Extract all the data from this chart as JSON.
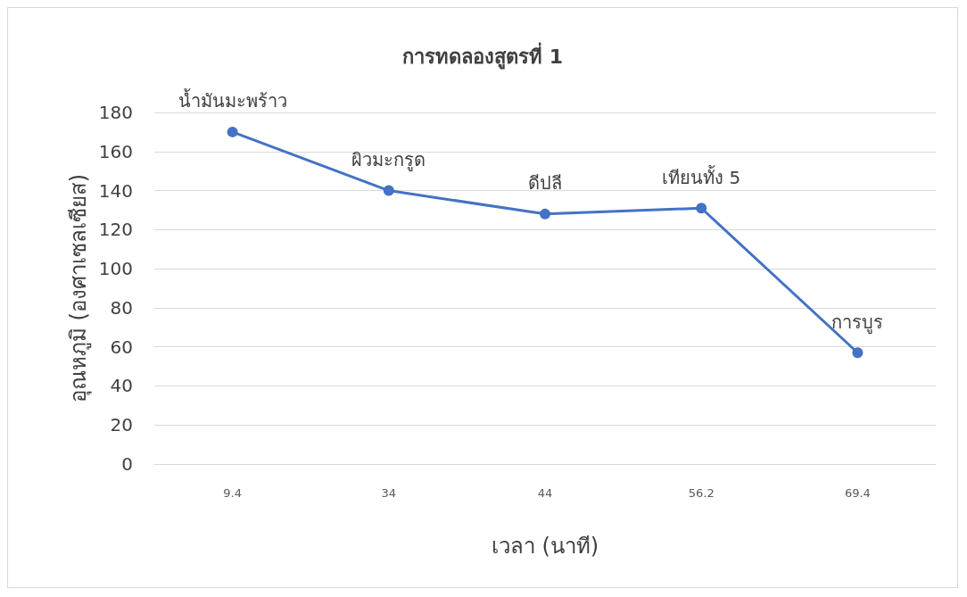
{
  "chart_data": {
    "type": "line",
    "title": "การทดลองสูตรที่ 1",
    "xlabel": "เวลา (นาที)",
    "ylabel": "อุณหภูมิ (องศาเซลเซียส)",
    "categories": [
      "9.4",
      "34",
      "44",
      "56.2",
      "69.4"
    ],
    "series": [
      {
        "color": "#4472c4",
        "values": [
          170,
          140,
          128,
          131,
          57
        ]
      }
    ],
    "annotations": [
      {
        "text": "น้ำมันมะพร้าว",
        "x": "9.4",
        "y": 170
      },
      {
        "text": "ผิวมะกรูด",
        "x": "34",
        "y": 140
      },
      {
        "text": "ดีปลี",
        "x": "44",
        "y": 128
      },
      {
        "text": "เทียนทั้ง 5",
        "x": "56.2",
        "y": 131
      },
      {
        "text": "การบูร",
        "x": "69.4",
        "y": 57
      }
    ],
    "ylim": [
      0,
      180
    ],
    "yticks": [
      0,
      20,
      40,
      60,
      80,
      100,
      120,
      140,
      160,
      180
    ],
    "grid": "y",
    "marker": "circle",
    "line_style": "solid"
  }
}
